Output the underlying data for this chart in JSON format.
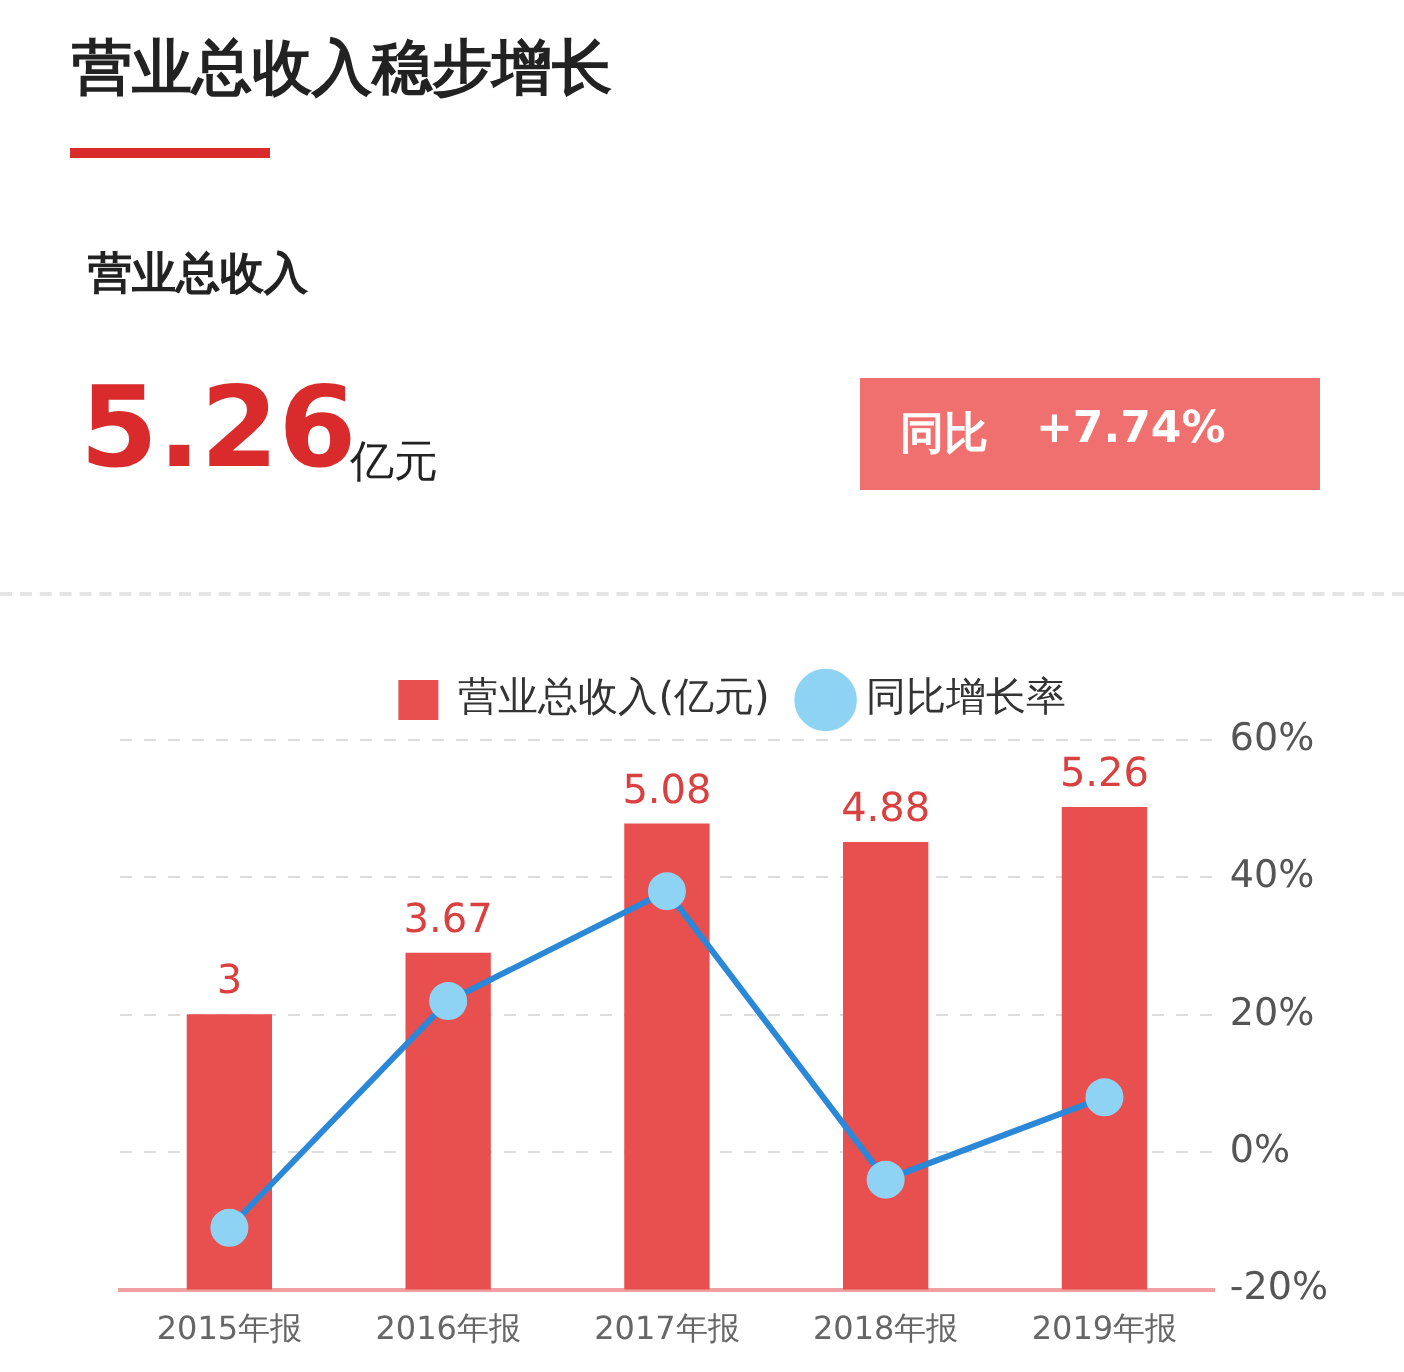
{
  "chart_data": {
    "type": "bar",
    "title": "营业总收入稳步增长",
    "subtitle": "营业总收入",
    "annotations": [
      "5.26",
      "亿元",
      "同比",
      "+7.74%"
    ],
    "categories": [
      "2015年报",
      "2016年报",
      "2017年报",
      "2018年报",
      "2019年报"
    ],
    "series": [
      {
        "name": "营业总收入(亿元)",
        "color": "#e84f4f",
        "values": [
          3,
          3.67,
          5.08,
          4.88,
          5.26
        ],
        "value_labels": [
          "3",
          "3.67",
          "5.08",
          "4.88",
          "5.26"
        ]
      },
      {
        "name": "同比增长率",
        "type": "line",
        "axis": "y2",
        "color": "#2b88d8",
        "marker": "circle",
        "values": [
          -11,
          22,
          38,
          -4,
          8
        ]
      }
    ],
    "ylim": [
      0,
      6
    ],
    "y2lim": [
      -20,
      60
    ],
    "y2ticks": [
      {
        "value": -20,
        "label": "-20%"
      },
      {
        "value": 0,
        "label": "0%"
      },
      {
        "value": 20,
        "label": "20%"
      },
      {
        "value": 40,
        "label": "40%"
      },
      {
        "value": 60,
        "label": "60%"
      }
    ],
    "grid": "y",
    "legend": "top"
  }
}
